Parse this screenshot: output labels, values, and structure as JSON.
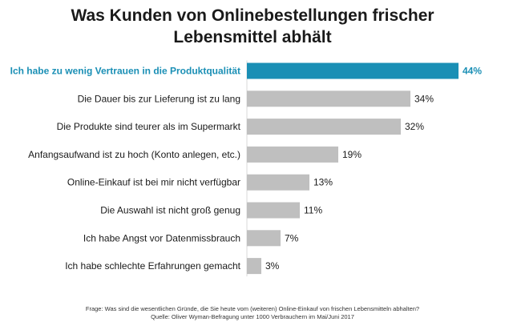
{
  "title": {
    "line1": "Was Kunden von Onlinebestellungen frischer",
    "line2": "Lebensmittel abhält"
  },
  "colors": {
    "highlight": "#1a8fb5",
    "bar": "#bfbfbf"
  },
  "chart_data": {
    "type": "bar",
    "orientation": "horizontal",
    "categories": [
      "Ich habe zu wenig Vertrauen in die Produktqualität",
      "Die Dauer bis zur Lieferung ist zu lang",
      "Die Produkte sind teurer als im Supermarkt",
      "Anfangsaufwand ist zu hoch (Konto anlegen, etc.)",
      "Online-Einkauf ist bei mir nicht verfügbar",
      "Die Auswahl ist nicht groß genug",
      "Ich habe Angst vor Datenmissbrauch",
      "Ich habe schlechte Erfahrungen gemacht"
    ],
    "values": [
      44,
      34,
      32,
      19,
      13,
      11,
      7,
      3
    ],
    "value_labels": [
      "44%",
      "34%",
      "32%",
      "19%",
      "13%",
      "11%",
      "7%",
      "3%"
    ],
    "highlight_index": 0,
    "unit": "%",
    "xlim": [
      0,
      44
    ],
    "grid": false,
    "legend": "none"
  },
  "footnote": {
    "question": "Frage: Was sind die wesentlichen Gründe, die Sie heute vom (weiteren) Online-Einkauf von frischen Lebensmitteln abhalten?",
    "source": "Quelle: Oliver Wyman-Befragung unter 1000 Verbrauchern im Mai/Juni 2017"
  }
}
